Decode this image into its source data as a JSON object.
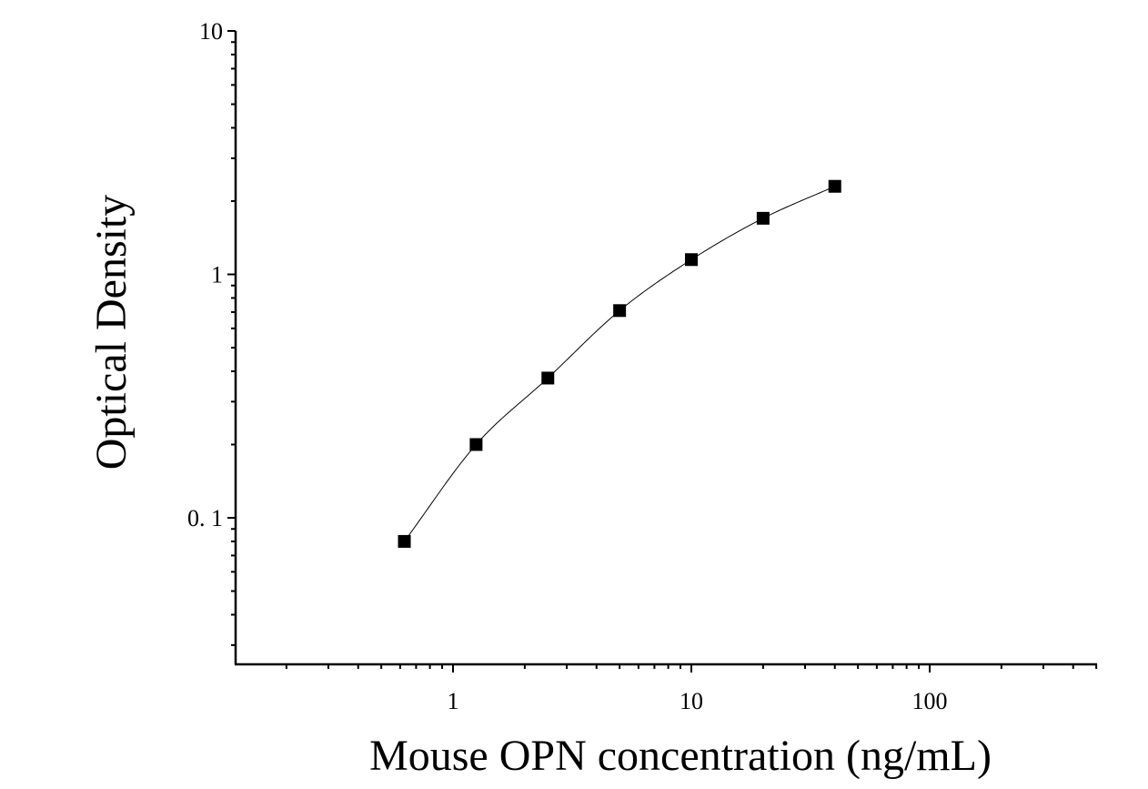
{
  "chart_data": {
    "type": "scatter",
    "title": "",
    "xlabel": "Mouse OPN concentration (ng/mL)",
    "ylabel": "Optical Density",
    "xscale": "log",
    "yscale": "log",
    "xlim": [
      0.12,
      550
    ],
    "ylim": [
      0.025,
      10
    ],
    "xticks": [
      {
        "value": 1,
        "label": "1"
      },
      {
        "value": 10,
        "label": "10"
      },
      {
        "value": 100,
        "label": "100"
      }
    ],
    "yticks": [
      {
        "value": 0.1,
        "label": "0. 1"
      },
      {
        "value": 1,
        "label": "1"
      },
      {
        "value": 10,
        "label": "10"
      }
    ],
    "grid": false,
    "legend": "none",
    "marker": "square",
    "fit_line": "smooth curve through points",
    "colors": {
      "marker": "#000000",
      "line": "#000000",
      "axis": "#000000",
      "background": "#ffffff"
    },
    "series": [
      {
        "x": [
          0.625,
          1.25,
          2.5,
          5,
          10,
          20,
          40
        ],
        "y": [
          0.08,
          0.2,
          0.375,
          0.71,
          1.15,
          1.7,
          2.3
        ]
      }
    ]
  }
}
